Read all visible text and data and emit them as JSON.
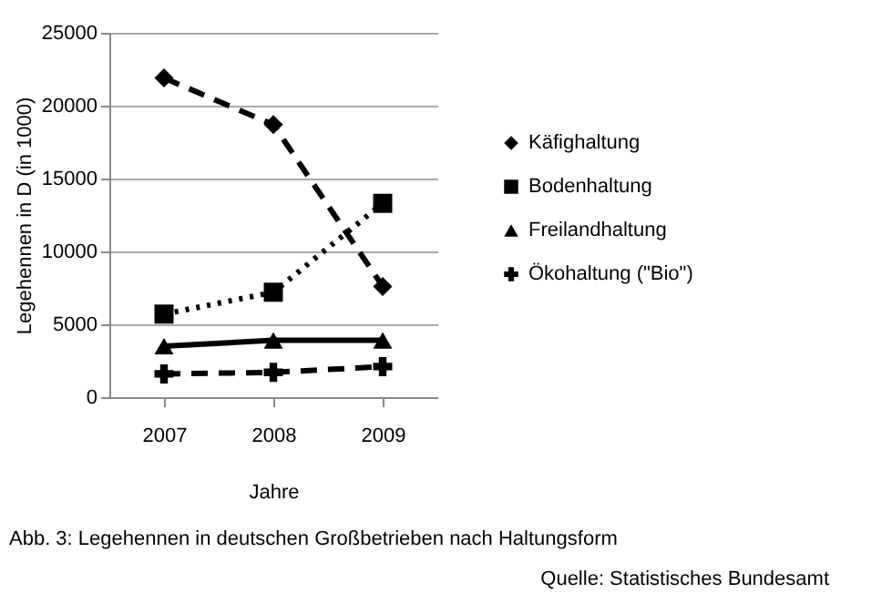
{
  "chart_data": {
    "type": "line",
    "xlabel": "Jahre",
    "ylabel": "Legehennen in D (in 1000)",
    "categories": [
      "2007",
      "2008",
      "2009"
    ],
    "series": [
      {
        "name": "Käfighaltung",
        "color": "#000000",
        "values": [
          21900,
          18700,
          7600
        ],
        "line_style": "dashed",
        "marker": "diamond"
      },
      {
        "name": "Bodenhaltung",
        "color": "#000000",
        "values": [
          5700,
          7200,
          13300
        ],
        "line_style": "dotted",
        "marker": "square"
      },
      {
        "name": "Freilandhaltung",
        "color": "#000000",
        "values": [
          3500,
          3900,
          3900
        ],
        "line_style": "solid",
        "marker": "triangle"
      },
      {
        "name": "Ökohaltung (\"Bio\")",
        "color": "#000000",
        "values": [
          1600,
          1700,
          2100
        ],
        "line_style": "dashed",
        "marker": "cross"
      }
    ],
    "ylim": [
      0,
      25000
    ],
    "yticks": [
      0,
      5000,
      10000,
      15000,
      20000,
      25000
    ],
    "grid": "y",
    "legend": "right",
    "annotations": [
      "Abb. 3: Legehennen in deutschen Großbetrieben nach Haltungsform",
      "Quelle: Statistisches Bundesamt"
    ]
  }
}
